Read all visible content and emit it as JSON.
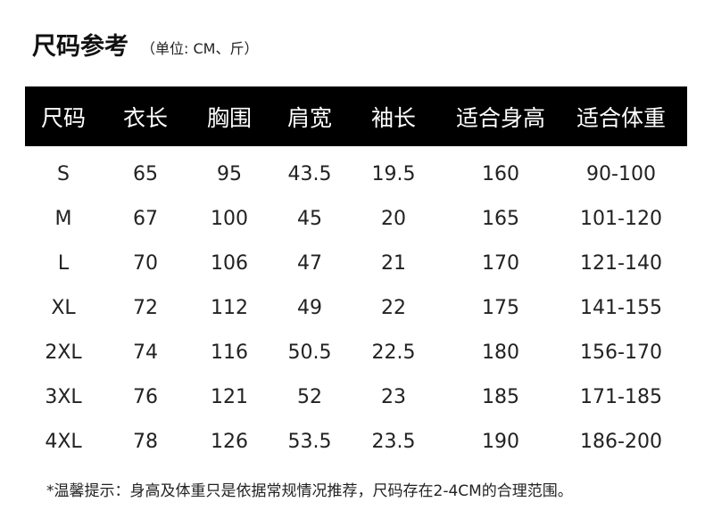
{
  "title": "尺码参考",
  "unit_note": "（单位: CM、斤）",
  "table": {
    "headers": [
      "尺码",
      "衣长",
      "胸围",
      "肩宽",
      "袖长",
      "适合身高",
      "适合体重"
    ],
    "rows": [
      [
        "S",
        "65",
        "95",
        "43.5",
        "19.5",
        "160",
        "90-100"
      ],
      [
        "M",
        "67",
        "100",
        "45",
        "20",
        "165",
        "101-120"
      ],
      [
        "L",
        "70",
        "106",
        "47",
        "21",
        "170",
        "121-140"
      ],
      [
        "XL",
        "72",
        "112",
        "49",
        "22",
        "175",
        "141-155"
      ],
      [
        "2XL",
        "74",
        "116",
        "50.5",
        "22.5",
        "180",
        "156-170"
      ],
      [
        "3XL",
        "76",
        "121",
        "52",
        "23",
        "185",
        "171-185"
      ],
      [
        "4XL",
        "78",
        "126",
        "53.5",
        "23.5",
        "190",
        "186-200"
      ]
    ]
  },
  "footnote": "*温馨提示：身高及体重只是依据常规情况推荐，尺码存在2-4CM的合理范围。",
  "colors": {
    "header_bg": "#000000",
    "header_text": "#ffffff",
    "body_text": "#222222"
  }
}
